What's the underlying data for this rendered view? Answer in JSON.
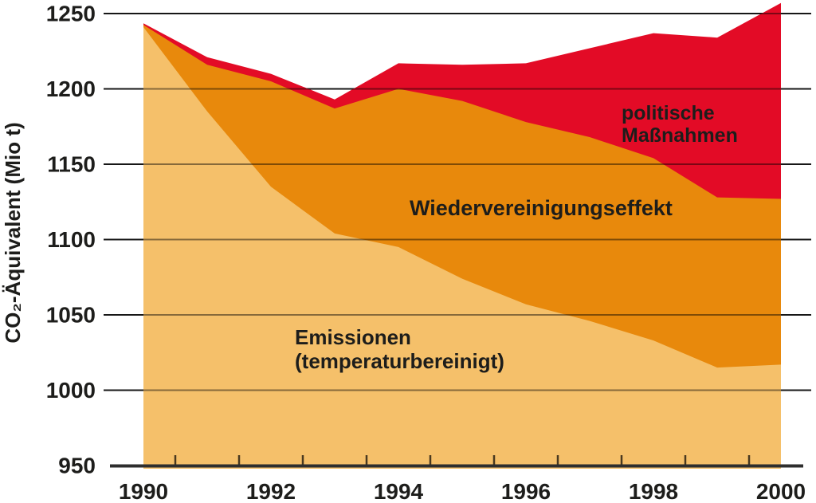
{
  "chart_data": {
    "type": "area",
    "title": "",
    "xlabel": "",
    "ylabel": "CO₂-Äquivalent  (Mio t)",
    "x": [
      1990,
      1991,
      1992,
      1993,
      1994,
      1995,
      1996,
      1997,
      1998,
      1999,
      2000
    ],
    "x_tick_labels": [
      "1990",
      "1992",
      "1994",
      "1996",
      "1998",
      "2000"
    ],
    "x_tick_label_years": [
      1990,
      1992,
      1994,
      1996,
      1998,
      2000
    ],
    "minor_tick_years": [
      1990.5,
      1991.5,
      1992.5,
      1993.5,
      1994.5,
      1995.5,
      1996.5,
      1997.5,
      1998.5,
      1999.5
    ],
    "y_ticks": [
      950,
      1000,
      1050,
      1100,
      1150,
      1200,
      1250
    ],
    "ylim": [
      950,
      1260
    ],
    "xlim": [
      1990,
      2000
    ],
    "grid": true,
    "legend_position": "labels-inside-areas",
    "baseline": 950,
    "note": "cumulative_top = absolute top boundary (Mio t CO2-eq.) of each stacked band, read off the chart",
    "series": [
      {
        "name": "Emissionen (temperaturbereinigt)",
        "color": "#F5C06A",
        "cumulative_top": [
          1241,
          1185,
          1135,
          1104,
          1095,
          1074,
          1057,
          1046,
          1033,
          1015,
          1017
        ]
      },
      {
        "name": "Wiedervereinigungseffekt",
        "color": "#E8890C",
        "cumulative_top": [
          1242.5,
          1216,
          1205,
          1187,
          1200,
          1192,
          1178,
          1168,
          1154,
          1128,
          1127
        ]
      },
      {
        "name": "politische Maßnahmen",
        "color": "#E30B26",
        "cumulative_top": [
          1243.5,
          1221,
          1210,
          1193,
          1217,
          1216,
          1217,
          1227,
          1237,
          1234,
          1257
        ]
      }
    ],
    "annotations": [
      {
        "id": "label-emissionen",
        "lines": [
          "Emissionen",
          "(temperaturbereinigt)"
        ]
      },
      {
        "id": "label-wiedervereinigung",
        "lines": [
          "Wiedervereinigungseffekt"
        ]
      },
      {
        "id": "label-politische",
        "lines": [
          "politische",
          "Maßnahmen"
        ]
      }
    ],
    "colors": {
      "axis": "#2e2e2e",
      "gridline": "#2b2b2b",
      "text": "#1d1d1b",
      "background": "#ffffff"
    }
  }
}
